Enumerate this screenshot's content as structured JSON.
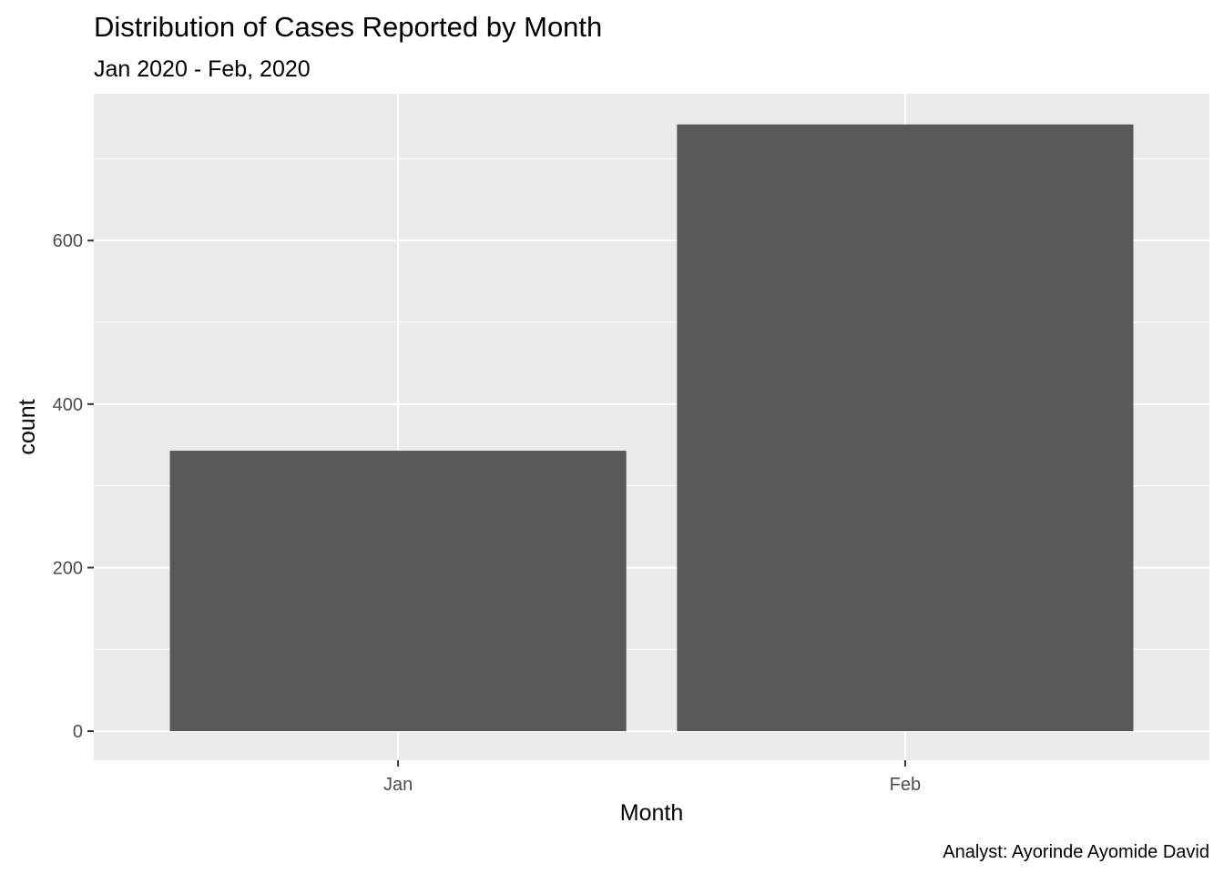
{
  "chart_data": {
    "type": "bar",
    "title": "Distribution of Cases Reported by Month",
    "subtitle": "Jan 2020 - Feb, 2020",
    "caption": "Analyst: Ayorinde Ayomide David",
    "xlabel": "Month",
    "ylabel": "count",
    "categories": [
      "Jan",
      "Feb"
    ],
    "values": [
      343,
      742
    ],
    "ylim": [
      -35.5,
      779.5
    ],
    "yticks": [
      0,
      200,
      400,
      600
    ],
    "ytick_labels": [
      "0",
      "200",
      "400",
      "600"
    ],
    "grid": true,
    "legend": "none",
    "colors": {
      "panel_background": "#ebebeb",
      "grid_line": "#ffffff",
      "bar_fill": "#595959",
      "tick_color": "#333333",
      "tick_label_color": "#4d4d4d"
    }
  }
}
